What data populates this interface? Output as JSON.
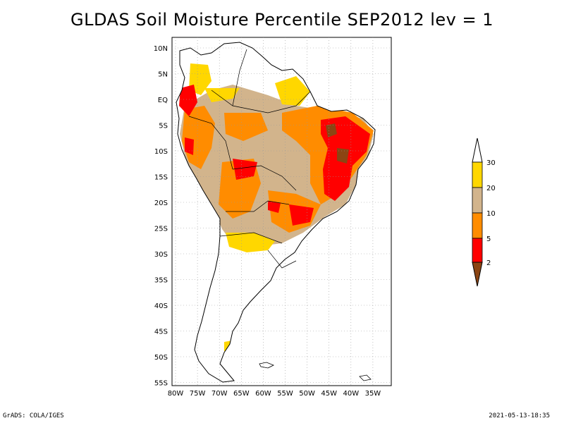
{
  "title": "GLDAS Soil Moisture Percentile SEP2012 lev = 1",
  "footer": {
    "left": "GrADS: COLA/IGES",
    "right": "2021-05-13-18:35"
  },
  "map": {
    "lon_ticks": [
      "80W",
      "75W",
      "70W",
      "65W",
      "60W",
      "55W",
      "50W",
      "45W",
      "40W",
      "35W"
    ],
    "lat_ticks": [
      "10N",
      "5N",
      "EQ",
      "5S",
      "10S",
      "15S",
      "20S",
      "25S",
      "30S",
      "35S",
      "40S",
      "45S",
      "50S",
      "55S"
    ]
  },
  "colorbar": {
    "labels": [
      "30",
      "20",
      "10",
      "5",
      "2"
    ],
    "colors": {
      "above30": "#ffffff",
      "c20_30": "#ffd700",
      "c10_20": "#d2b48c",
      "c5_10": "#ff8c00",
      "c2_5": "#ff0000",
      "below2": "#8b4513"
    }
  }
}
